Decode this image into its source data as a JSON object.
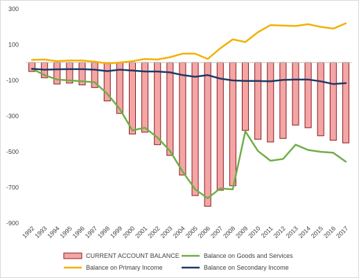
{
  "chart_data": {
    "type": "bar",
    "title": "",
    "xlabel": "",
    "ylabel": "",
    "ylim": [
      -900,
      300
    ],
    "yticks": [
      300,
      100,
      -100,
      -300,
      -500,
      -700,
      -900
    ],
    "grid": false,
    "legend_position": "bottom",
    "categories": [
      "1992",
      "1993",
      "1994",
      "1995",
      "1996",
      "1997",
      "1998",
      "1999",
      "2000",
      "2001",
      "2002",
      "2003",
      "2004",
      "2005",
      "2006",
      "2007",
      "2008",
      "2009",
      "2010",
      "2011",
      "2012",
      "2013",
      "2014",
      "2015",
      "2016",
      "2017"
    ],
    "series": [
      {
        "name": "CURRENT ACCOUNT BALANCE",
        "kind": "bar",
        "color": "#f4a6a6",
        "edge": "#8b1a1a",
        "values": [
          -50,
          -85,
          -120,
          -115,
          -125,
          -140,
          -215,
          -285,
          -400,
          -390,
          -460,
          -520,
          -630,
          -745,
          -805,
          -715,
          -690,
          -380,
          -430,
          -445,
          -425,
          -350,
          -365,
          -410,
          -435,
          -450
        ]
      },
      {
        "name": "Balance on Goods and Services",
        "kind": "line",
        "color": "#70ad47",
        "values": [
          -35,
          -70,
          -95,
          -100,
          -105,
          -110,
          -175,
          -260,
          -380,
          -365,
          -420,
          -495,
          -610,
          -710,
          -760,
          -705,
          -710,
          -385,
          -495,
          -550,
          -540,
          -460,
          -490,
          -500,
          -505,
          -555
        ]
      },
      {
        "name": "Balance on Primary Income",
        "kind": "line",
        "color": "#f2b100",
        "values": [
          15,
          17,
          8,
          12,
          12,
          5,
          -5,
          0,
          8,
          20,
          17,
          30,
          50,
          50,
          20,
          80,
          130,
          115,
          170,
          210,
          207,
          205,
          215,
          200,
          190,
          220
        ]
      },
      {
        "name": "Balance on Secondary Income",
        "kind": "line",
        "color": "#1f3864",
        "values": [
          -35,
          -40,
          -38,
          -37,
          -37,
          -40,
          -48,
          -40,
          -45,
          -50,
          -50,
          -55,
          -70,
          -80,
          -70,
          -90,
          -100,
          -103,
          -103,
          -105,
          -97,
          -95,
          -95,
          -105,
          -120,
          -115
        ]
      }
    ]
  }
}
